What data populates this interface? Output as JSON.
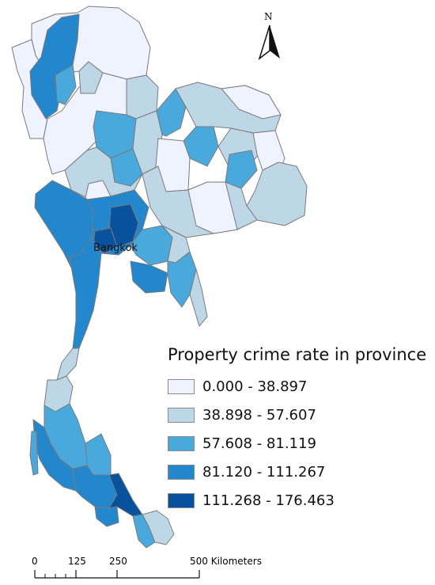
{
  "map": {
    "city_label": "Bangkok",
    "north_label": "N"
  },
  "legend": {
    "title": "Property crime rate in province",
    "classes": [
      {
        "label": "0.000 - 38.897",
        "color": "#eff3ff"
      },
      {
        "label": "38.898 - 57.607",
        "color": "#bdd7e7"
      },
      {
        "label": "57.608 - 81.119",
        "color": "#4aa9dc"
      },
      {
        "label": "81.120 - 111.267",
        "color": "#2287cc"
      },
      {
        "label": "111.268 - 176.463",
        "color": "#08519c"
      }
    ]
  },
  "scale_bar": {
    "ticks": [
      "0",
      "125",
      "250",
      "500 Kilometers"
    ]
  }
}
